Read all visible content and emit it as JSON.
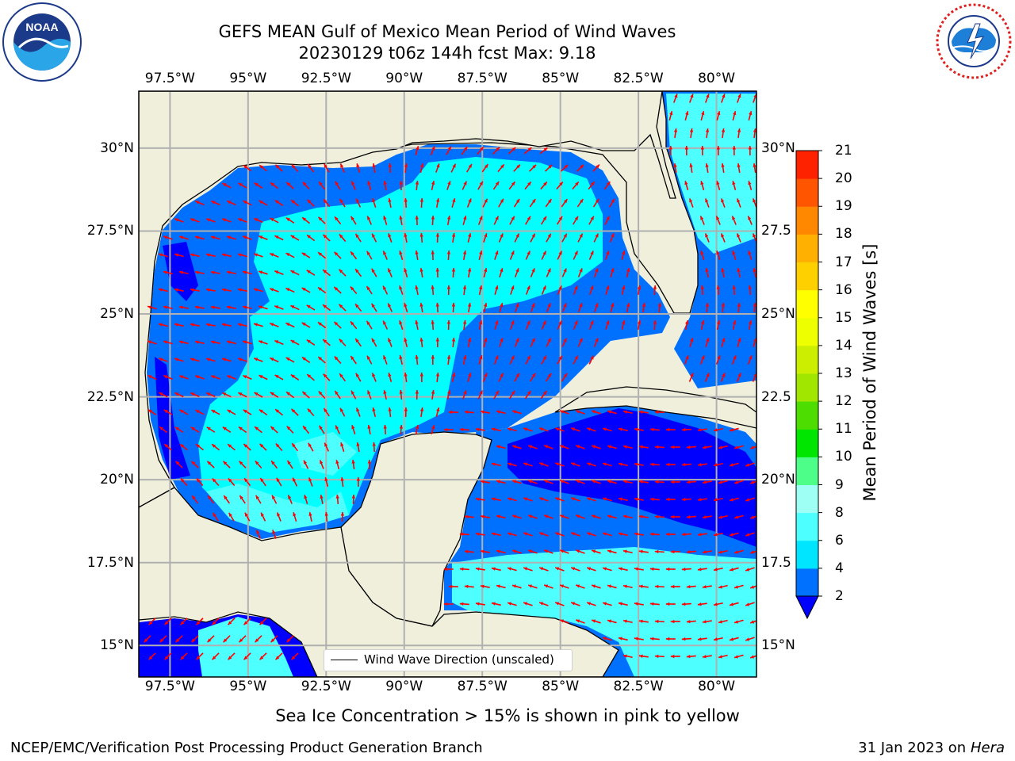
{
  "title": {
    "line1": "GEFS MEAN Gulf of Mexico Mean Period of Wind Waves",
    "line2": "20230129 t06z 144h fcst   Max: 9.18"
  },
  "logos": {
    "left": {
      "text": "NOAA",
      "ring_top": "NATIONAL OCEANIC AND ATMOSPHERIC ADMINISTRATION",
      "ring_bottom": "U.S. DEPARTMENT OF COMMERCE"
    },
    "right": {
      "ring_text": "NATIONAL WEATHER SERVICE"
    }
  },
  "axes": {
    "lon_labels": [
      "97.5°W",
      "95°W",
      "92.5°W",
      "90°W",
      "87.5°W",
      "85°W",
      "82.5°W",
      "80°W"
    ],
    "lat_labels": [
      "30°N",
      "27.5°N",
      "25°N",
      "22.5°N",
      "20°N",
      "17.5°N",
      "15°N"
    ],
    "lat_labels_right": [
      "30°N",
      "27.5",
      "25°N",
      "22.5",
      "20°N",
      "17.5",
      "15°N"
    ]
  },
  "legend": {
    "label": "Wind Wave Direction (unscaled)"
  },
  "colorbar": {
    "label": "Mean Period of Wind Waves [s]",
    "ticks": [
      "2",
      "4",
      "6",
      "8",
      "9",
      "10",
      "11",
      "12",
      "13",
      "14",
      "15",
      "16",
      "17",
      "18",
      "19",
      "20",
      "21"
    ],
    "colors": [
      "#0070ff",
      "#00e5ff",
      "#4dffff",
      "#9efff5",
      "#4dff88",
      "#00e600",
      "#4ddd00",
      "#a0e600",
      "#ccee00",
      "#eeff00",
      "#ffff00",
      "#ffd000",
      "#ffb000",
      "#ff8800",
      "#ff5500",
      "#ff2200"
    ],
    "under_color": "#0000ff"
  },
  "note": "Sea Ice Concentration > 15% is shown in pink to yellow",
  "footer": {
    "left": "NCEP/EMC/Verification Post Processing Product Generation Branch",
    "right_prefix": "31 Jan 2023 on ",
    "right_machine": "Hera"
  },
  "colors": {
    "land": "#efefdc",
    "deep_blue": "#0000ff",
    "blue": "#0070ff",
    "cyan": "#00ffff",
    "light_cyan": "#4dffff",
    "pale_cyan": "#9efff5",
    "arrow": "#ff0000",
    "grid": "#b0b0b0"
  }
}
